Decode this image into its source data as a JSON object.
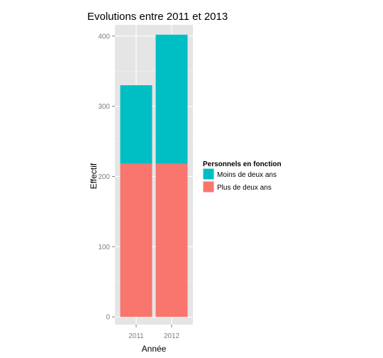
{
  "chart_data": {
    "type": "bar",
    "stacked": true,
    "title": "Evolutions entre 2011 et 2013",
    "xlabel": "Année",
    "ylabel": "Effectif",
    "categories": [
      "2011",
      "2012"
    ],
    "series": [
      {
        "name": "Plus de deux ans",
        "values": [
          218,
          218
        ],
        "color": "#F8766D"
      },
      {
        "name": "Moins de deux ans",
        "values": [
          112,
          184
        ],
        "color": "#00BFC4"
      }
    ],
    "ylim": [
      -11,
      416
    ],
    "yticks": [
      0,
      100,
      200,
      300,
      400
    ],
    "grid": true,
    "legend": {
      "title": "Personnels en fonction",
      "placement": "right",
      "entries": [
        "Moins de deux ans",
        "Plus de deux ans"
      ]
    },
    "panel_color": "#E5E5E5",
    "grid_color": "#FFFFFF"
  }
}
